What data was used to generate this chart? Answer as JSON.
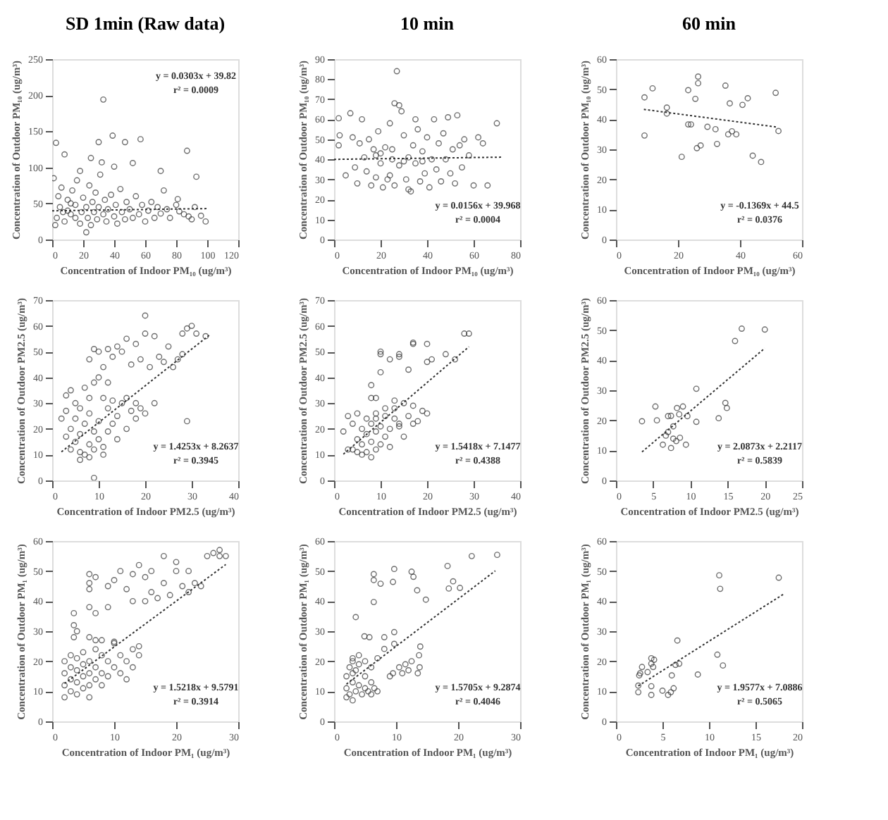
{
  "chart_data": [
    {
      "type": "scatter",
      "title": "SD 1min (Raw data)",
      "xlabel": "Concentration of Indoor PM₁₀ (ug/m³)",
      "ylabel": "Concentration of Outdoor PM₁₀ (ug/m³)",
      "xlim": [
        0,
        120
      ],
      "xticks": [
        0,
        20,
        40,
        60,
        80,
        100,
        120
      ],
      "ylim": [
        0,
        250
      ],
      "yticks": [
        0,
        50,
        100,
        150,
        200,
        250
      ],
      "grid": false,
      "annotations": [
        "y = 0.0303x + 39.82",
        "r² = 0.0009"
      ],
      "series": [
        {
          "color": "#333333",
          "marker": "circle",
          "x": [
            2.5,
            8,
            33,
            30,
            39,
            47,
            57,
            87,
            93,
            99,
            82,
            81,
            72,
            70,
            52,
            25,
            32,
            40,
            90,
            85,
            3,
            5,
            4,
            6,
            8,
            10,
            10,
            12,
            13,
            15,
            15,
            16,
            18,
            19,
            20,
            22,
            23,
            24,
            25,
            26,
            27,
            28,
            29,
            30,
            31,
            33,
            34,
            35,
            36,
            38,
            40,
            41,
            42,
            44,
            45,
            47,
            48,
            50,
            52,
            54,
            56,
            58,
            60,
            62,
            64,
            66,
            68,
            70,
            74,
            76,
            80,
            88,
            92,
            96,
            22,
            1,
            2,
            18,
            12,
            7
          ],
          "values": [
            134,
            118,
            194,
            135,
            144,
            135,
            139,
            123,
            87,
            25,
            39,
            56,
            68,
            95,
            106,
            113,
            107,
            101,
            28,
            35,
            30,
            45,
            60,
            72,
            25,
            40,
            55,
            35,
            68,
            30,
            48,
            82,
            22,
            38,
            58,
            45,
            30,
            75,
            20,
            52,
            38,
            65,
            28,
            45,
            90,
            35,
            55,
            25,
            42,
            62,
            32,
            48,
            22,
            70,
            38,
            28,
            52,
            42,
            30,
            60,
            35,
            48,
            25,
            40,
            52,
            30,
            45,
            36,
            42,
            30,
            48,
            32,
            45,
            33,
            10,
            85,
            20,
            95,
            50,
            38
          ]
        },
        {
          "type": "line",
          "color": "#333333",
          "marker": "none",
          "line_style": "dotted",
          "x": [
            0,
            100
          ],
          "values": [
            39.8,
            42.9
          ]
        }
      ]
    },
    {
      "type": "scatter",
      "title": "10 min",
      "xlabel": "Concentration of Indoor PM₁₀ (ug/m³)",
      "ylabel": "Concentration of Outdoor PM₁₀ (ug/m³)",
      "xlim": [
        0,
        80
      ],
      "xticks": [
        0,
        20,
        40,
        60,
        80
      ],
      "ylim": [
        0,
        90
      ],
      "yticks": [
        0,
        10,
        20,
        30,
        40,
        50,
        60,
        70,
        80,
        90
      ],
      "grid": false,
      "annotations": [
        "y = 0.0156x + 39.968",
        "r² = 0.0004"
      ],
      "series": [
        {
          "color": "#333333",
          "marker": "circle",
          "x": [
            2,
            2.4,
            2,
            5,
            7,
            8,
            9,
            10,
            11,
            12,
            13,
            14,
            15,
            16,
            17,
            18,
            19,
            20,
            21,
            22,
            23,
            24,
            25,
            26,
            27,
            28,
            29,
            30,
            31,
            32,
            33,
            34,
            35,
            36,
            37,
            38,
            39,
            40,
            41,
            42,
            43,
            44,
            45,
            46,
            47,
            48,
            49,
            50,
            51,
            52,
            53,
            54,
            55,
            56,
            58,
            60,
            62,
            64,
            66,
            70,
            25,
            28,
            30,
            24,
            26,
            32,
            35,
            38,
            20,
            18
          ],
          "values": [
            60.5,
            52,
            47,
            32,
            63,
            51,
            36,
            28,
            48,
            60,
            41,
            34,
            50,
            27,
            45,
            31,
            54,
            38,
            26,
            46,
            30,
            58,
            40,
            68,
            84,
            67,
            64,
            52,
            30,
            41,
            24,
            47,
            38,
            55,
            29,
            44,
            33,
            51,
            26,
            40,
            60,
            35,
            48,
            29,
            53,
            40,
            61,
            33,
            45,
            28,
            62,
            47,
            36,
            50,
            42,
            27,
            51,
            48,
            27,
            58,
            45,
            37,
            39,
            32,
            27,
            25,
            60,
            39,
            43,
            42
          ]
        },
        {
          "type": "line",
          "color": "#333333",
          "marker": "none",
          "line_style": "dotted",
          "x": [
            0,
            72
          ],
          "values": [
            40,
            41.1
          ]
        }
      ]
    },
    {
      "type": "scatter",
      "title": "60 min",
      "xlabel": "Concentration of Indoor PM₁₀ (ug/m³)",
      "ylabel": "Concentration of Outdoor PM₁₀ (ug/m³)",
      "xlim": [
        0,
        60
      ],
      "xticks": [
        0,
        20,
        40,
        60
      ],
      "ylim": [
        0,
        60
      ],
      "yticks": [
        0,
        10,
        20,
        30,
        40,
        50,
        60
      ],
      "grid": false,
      "annotations": [
        "y = -0.1369x + 44.5",
        "r² = 0.0376"
      ],
      "series": [
        {
          "color": "#333333",
          "marker": "circle",
          "x": [
            9.2,
            9.2,
            11.8,
            16.4,
            16.4,
            21.2,
            23.3,
            23.3,
            24.2,
            25.6,
            26.5,
            26.5,
            26.1,
            27.3,
            29.5,
            32.1,
            32.6,
            35.3,
            36.7,
            36.2,
            37.4,
            38.8,
            40.8,
            42.5,
            44.1,
            46.8,
            51.5,
            52.4
          ],
          "values": [
            47.3,
            34.6,
            50.3,
            43.9,
            41.9,
            27.5,
            49.7,
            38.3,
            38.3,
            46.8,
            54.2,
            52,
            30.4,
            31.3,
            37.5,
            36.7,
            31.8,
            51.2,
            45.3,
            35,
            36,
            35,
            44.8,
            47,
            27.9,
            25.8,
            48.8,
            36.1
          ]
        },
        {
          "type": "line",
          "color": "#333333",
          "marker": "none",
          "line_style": "dotted",
          "x": [
            9,
            52
          ],
          "values": [
            43.3,
            37.4
          ]
        }
      ]
    },
    {
      "type": "scatter",
      "xlabel": "Concentration of Indoor PM2.5 (ug/m³)",
      "ylabel": "Concentration of Outdoor PM2.5 (ug/m³)",
      "xlim": [
        0,
        40
      ],
      "xticks": [
        0,
        10,
        20,
        30,
        40
      ],
      "ylim": [
        0,
        70
      ],
      "yticks": [
        0,
        10,
        20,
        30,
        40,
        50,
        60,
        70
      ],
      "grid": false,
      "annotations": [
        "y = 1.4253x + 8.2637",
        "r² = 0.3945"
      ],
      "series": [
        {
          "color": "#333333",
          "marker": "circle",
          "x": [
            4,
            5,
            6,
            7,
            7,
            8,
            8,
            9,
            9,
            10,
            5,
            6,
            4,
            3,
            3,
            6,
            10,
            11,
            12,
            12,
            13,
            14,
            14,
            15,
            16,
            17,
            18,
            19,
            20,
            22,
            3,
            4,
            5,
            7,
            8,
            9,
            11,
            13,
            16,
            18,
            8,
            9,
            10,
            11,
            12,
            13,
            14,
            15,
            16,
            17,
            18,
            19,
            20,
            21,
            22,
            23,
            24,
            25,
            26,
            27,
            28,
            29,
            30,
            31,
            33,
            28,
            10,
            12,
            20,
            29,
            9,
            2,
            6,
            8,
            11
          ],
          "values": [
            12,
            15,
            18,
            10,
            22,
            14,
            26,
            12,
            19,
            16,
            24,
            11,
            20,
            17,
            27,
            28,
            23,
            13,
            19,
            28,
            22,
            25,
            16,
            30,
            20,
            27,
            24,
            28,
            26,
            30,
            33,
            35,
            30,
            36,
            32,
            38,
            32,
            31,
            32,
            30,
            47,
            51,
            50,
            44,
            51,
            48,
            52,
            50,
            55,
            45,
            53,
            47,
            57,
            44,
            56,
            48,
            46,
            52,
            44,
            47,
            57,
            59,
            60,
            57,
            56,
            49,
            40,
            38,
            64,
            23,
            1,
            24,
            8,
            9,
            10
          ]
        },
        {
          "type": "line",
          "color": "#333333",
          "marker": "none",
          "line_style": "dotted",
          "x": [
            2,
            34
          ],
          "values": [
            11.1,
            56.7
          ]
        }
      ]
    },
    {
      "type": "scatter",
      "xlabel": "Concentration of Indoor PM2.5 (ug/m³)",
      "ylabel": "Concentration of Outdoor PM2.5 (ug/m³)",
      "xlim": [
        0,
        40
      ],
      "xticks": [
        0,
        10,
        20,
        30,
        40
      ],
      "ylim": [
        0,
        70
      ],
      "yticks": [
        0,
        10,
        20,
        30,
        40,
        50,
        60,
        70
      ],
      "grid": false,
      "annotations": [
        "y = 1.5418x + 7.1477",
        "r² = 0.4388"
      ],
      "series": [
        {
          "color": "#333333",
          "marker": "circle",
          "x": [
            2,
            3,
            4,
            4,
            5,
            5,
            6,
            6,
            7,
            7,
            7,
            8,
            8,
            8,
            9,
            9,
            9,
            10,
            10,
            11,
            11,
            12,
            12,
            13,
            13,
            14,
            15,
            15,
            16,
            17,
            17,
            18,
            19,
            20,
            8,
            8,
            9,
            10,
            10,
            12,
            10,
            14,
            14,
            17,
            20,
            20,
            21,
            24,
            26,
            28,
            29,
            16,
            13,
            11,
            6,
            3,
            5,
            17,
            14,
            9
          ],
          "values": [
            19,
            25,
            22,
            12,
            16,
            26,
            14,
            20,
            11,
            24,
            18,
            9,
            15,
            22,
            12,
            19,
            26,
            14,
            21,
            17,
            25,
            13,
            20,
            28,
            24,
            22,
            30,
            17,
            25,
            22,
            29,
            23,
            27,
            26,
            37,
            32,
            32,
            50,
            49,
            47,
            42,
            49,
            48,
            53,
            53,
            46,
            47,
            49,
            47,
            57,
            57,
            43,
            31,
            28,
            10,
            12,
            11,
            53.5,
            21,
            24
          ]
        },
        {
          "type": "line",
          "color": "#333333",
          "marker": "none",
          "line_style": "dotted",
          "x": [
            2,
            29
          ],
          "values": [
            10.2,
            51.9
          ]
        }
      ]
    },
    {
      "type": "scatter",
      "xlabel": "Concentration of Indoor PM2.5 (ug/m³)",
      "ylabel": "Concentration of Outdoor PM2.5 (ug/m³)",
      "xlim": [
        0,
        25
      ],
      "xticks": [
        0,
        5,
        10,
        15,
        20,
        25
      ],
      "ylim": [
        0,
        60
      ],
      "yticks": [
        0,
        10,
        20,
        30,
        40,
        50,
        60
      ],
      "grid": false,
      "annotations": [
        "y = 2.0873x + 2.2117",
        "r² = 0.5839"
      ],
      "series": [
        {
          "color": "#333333",
          "marker": "circle",
          "x": [
            3.5,
            5.3,
            5.5,
            6.3,
            6.7,
            7,
            7,
            7.4,
            7.7,
            7.4,
            7.7,
            8.1,
            8.2,
            8.5,
            8.6,
            9,
            9.4,
            9.6,
            10.8,
            10.8,
            13.8,
            14.7,
            14.9,
            16,
            16.9,
            20
          ],
          "values": [
            19.7,
            24.6,
            20,
            11.9,
            14.9,
            16.1,
            21.4,
            21.5,
            18,
            10.8,
            13.9,
            13.1,
            24.1,
            22,
            14.2,
            24.6,
            11.9,
            21.4,
            30.5,
            19.5,
            20.7,
            25.8,
            24.1,
            46.4,
            50.5,
            50.2
          ]
        },
        {
          "type": "line",
          "color": "#333333",
          "marker": "none",
          "line_style": "dotted",
          "x": [
            3.5,
            20
          ],
          "values": [
            9.5,
            44
          ]
        }
      ]
    },
    {
      "type": "scatter",
      "xlabel": "Concentration of Indoor PM₁ (ug/m³)",
      "ylabel": "Concentration of Outdoor PM₁ (ug/m³)",
      "xlim": [
        0,
        30
      ],
      "xticks": [
        0,
        10,
        20,
        30
      ],
      "ylim": [
        0,
        60
      ],
      "yticks": [
        0,
        10,
        20,
        30,
        40,
        50,
        60
      ],
      "grid": false,
      "annotations": [
        "y = 1.5218x + 9.5791",
        "r² = 0.3914"
      ],
      "series": [
        {
          "color": "#333333",
          "marker": "circle",
          "x": [
            2,
            2,
            2,
            2,
            3,
            3,
            3,
            3,
            4,
            4,
            4,
            4,
            5,
            5,
            5,
            5,
            6,
            6,
            6,
            6,
            7,
            7,
            7,
            8,
            8,
            8,
            9,
            9,
            10,
            10,
            11,
            11,
            12,
            12,
            13,
            13,
            14,
            14,
            8,
            6,
            3.5,
            3.5,
            3.5,
            4,
            6,
            6,
            6,
            7,
            6,
            7,
            9,
            10,
            11,
            12,
            13,
            14,
            15,
            16,
            15,
            17,
            18,
            18,
            19,
            20,
            21,
            22,
            22,
            23,
            24,
            25,
            26,
            27,
            28,
            27,
            13,
            20,
            10,
            7,
            9,
            16
          ],
          "values": [
            8,
            12,
            16,
            20,
            10,
            14,
            18,
            22,
            9,
            13,
            17,
            21,
            11,
            15,
            19,
            23,
            8,
            12,
            16,
            20,
            14,
            18,
            24,
            12,
            16,
            22,
            15,
            20,
            18,
            26,
            16,
            22,
            14,
            20,
            18,
            24,
            22,
            25,
            27,
            28,
            28,
            32,
            36,
            30,
            49,
            46,
            44,
            48,
            38,
            36,
            38,
            47,
            50,
            44,
            49,
            52,
            48,
            43,
            40,
            41,
            46,
            55,
            42,
            53,
            45,
            43,
            50,
            46,
            45,
            55,
            56,
            55,
            55,
            57,
            40,
            50,
            26.5,
            27,
            45,
            50
          ]
        },
        {
          "type": "line",
          "color": "#333333",
          "marker": "none",
          "line_style": "dotted",
          "x": [
            2,
            28
          ],
          "values": [
            12.6,
            52.2
          ]
        }
      ]
    },
    {
      "type": "scatter",
      "xlabel": "Concentration of Indoor PM₁ (ug/m³)",
      "ylabel": "Concentration of Outdoor PM₁ (ug/m³)",
      "xlim": [
        0,
        30
      ],
      "xticks": [
        0,
        10,
        20,
        30
      ],
      "ylim": [
        0,
        60
      ],
      "yticks": [
        0,
        10,
        20,
        30,
        40,
        50,
        60
      ],
      "grid": false,
      "annotations": [
        "y = 1.5705x + 9.2874",
        "r² = 0.4046"
      ],
      "series": [
        {
          "color": "#333333",
          "marker": "circle",
          "x": [
            2,
            2,
            2,
            2.5,
            2.5,
            3,
            3,
            3,
            3,
            3,
            3.5,
            3.5,
            4,
            4,
            4,
            4.5,
            5,
            5,
            5,
            5.5,
            6,
            6,
            6,
            6.5,
            7,
            7,
            3.5,
            4.9,
            6.4,
            6.4,
            6.4,
            7.5,
            9.5,
            9.7,
            12.5,
            12.8,
            13.4,
            14.8,
            18.3,
            18.5,
            19.2,
            20.3,
            22.2,
            26.3,
            13.9,
            13.7,
            9.7,
            9.7,
            8.1,
            5.7,
            8.1,
            9,
            9.5,
            10.5,
            11,
            11.5,
            12,
            12.5,
            13.5,
            13.8
          ],
          "values": [
            8,
            11,
            15,
            9,
            18,
            7,
            13,
            16,
            20,
            21,
            10,
            17,
            12,
            19,
            22,
            9,
            11,
            15,
            20,
            10,
            9,
            13,
            18,
            11,
            10,
            21,
            34.7,
            28.3,
            49,
            47,
            39.7,
            45.8,
            46.4,
            50.7,
            49.8,
            48.1,
            43.6,
            40.5,
            51.7,
            44.2,
            46.6,
            44.4,
            55,
            55.4,
            24.9,
            22,
            25.8,
            29.7,
            28,
            28,
            24.1,
            15,
            16,
            18,
            16,
            19,
            17,
            20,
            16,
            18
          ]
        },
        {
          "type": "line",
          "color": "#333333",
          "marker": "none",
          "line_style": "dotted",
          "x": [
            2,
            26
          ],
          "values": [
            12.4,
            50.1
          ]
        }
      ]
    },
    {
      "type": "scatter",
      "xlabel": "Concentration of Indoor PM₁ (ug/m³)",
      "ylabel": "Concentration of Outdoor PM₁ (ug/m³)",
      "xlim": [
        0,
        20
      ],
      "xticks": [
        0,
        5,
        10,
        15,
        20
      ],
      "ylim": [
        0,
        60
      ],
      "yticks": [
        0,
        10,
        20,
        30,
        40,
        50,
        60
      ],
      "grid": false,
      "annotations": [
        "y = 1.9577x + 7.0886",
        "r² = 0.5065"
      ],
      "series": [
        {
          "color": "#333333",
          "marker": "circle",
          "x": [
            2.4,
            2.4,
            2.5,
            2.6,
            2.8,
            3.4,
            3.8,
            4.1,
            3.8,
            4,
            3.8,
            3.8,
            5,
            5.6,
            5.9,
            6.2,
            6,
            6.4,
            6.6,
            6.8,
            8.8,
            10.9,
            11.1,
            11.2,
            11.5,
            17.5
          ],
          "values": [
            9.7,
            11.9,
            15.3,
            16,
            18.1,
            16.4,
            19.2,
            20.5,
            21,
            18.1,
            11.7,
            8.8,
            10.2,
            8.8,
            9.7,
            11,
            15.3,
            18.8,
            26.9,
            19.2,
            15.6,
            22.2,
            48.6,
            44.1,
            18.6,
            47.8
          ]
        },
        {
          "type": "line",
          "color": "#333333",
          "marker": "none",
          "line_style": "dotted",
          "x": [
            2.4,
            18
          ],
          "values": [
            11.8,
            42.3
          ]
        }
      ]
    }
  ]
}
